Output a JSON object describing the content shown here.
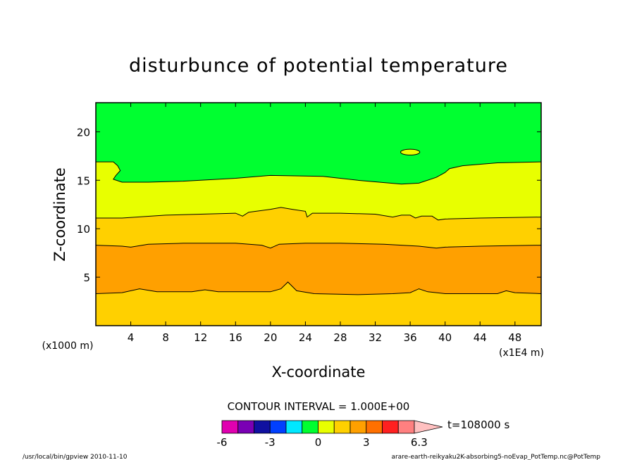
{
  "chart_data": {
    "type": "contour",
    "title": "disturbunce of potential temperature",
    "xlabel": "X-coordinate",
    "ylabel": "Z-coordinate",
    "x_unit": "(x1E4 m)",
    "y_unit": "(x1000 m)",
    "xlim": [
      0,
      51
    ],
    "ylim": [
      0,
      23
    ],
    "x_ticks": [
      4,
      8,
      12,
      16,
      20,
      24,
      28,
      32,
      36,
      40,
      44,
      48
    ],
    "y_ticks": [
      5,
      10,
      15,
      20
    ],
    "contour_interval_label": "CONTOUR INTERVAL = 1.000E+00",
    "time_label": "t=108000 s",
    "colorbar": {
      "levels": [
        -6,
        -5,
        -4,
        -3,
        -2,
        -1,
        0,
        1,
        2,
        3,
        4,
        5,
        6
      ],
      "tick_labels": [
        "-6",
        "-3",
        "0",
        "3",
        "6.3"
      ],
      "tick_values": [
        -6,
        -3,
        0,
        3,
        6.3
      ],
      "colors": [
        "#e000b0",
        "#7a00b4",
        "#1010a0",
        "#0040ff",
        "#00e8ff",
        "#00ff30",
        "#e8ff00",
        "#ffd000",
        "#ffa000",
        "#ff7000",
        "#ff2020",
        "#ff8080",
        "#ffc0c0"
      ]
    },
    "bands": [
      {
        "range": "0 to 1",
        "color": "#ffd000",
        "lower": [
          [
            0,
            0
          ],
          [
            51,
            0
          ]
        ],
        "upper": [
          [
            0,
            3.3
          ],
          [
            3,
            3.4
          ],
          [
            5,
            3.8
          ],
          [
            7,
            3.5
          ],
          [
            11,
            3.5
          ],
          [
            12.5,
            3.7
          ],
          [
            14,
            3.5
          ],
          [
            20,
            3.5
          ],
          [
            21.2,
            3.8
          ],
          [
            22,
            4.5
          ],
          [
            23,
            3.6
          ],
          [
            25,
            3.3
          ],
          [
            30,
            3.2
          ],
          [
            34,
            3.3
          ],
          [
            36,
            3.4
          ],
          [
            37,
            3.8
          ],
          [
            38,
            3.5
          ],
          [
            40,
            3.3
          ],
          [
            46,
            3.3
          ],
          [
            47,
            3.6
          ],
          [
            48,
            3.4
          ],
          [
            51,
            3.3
          ]
        ]
      },
      {
        "range": "1 to 2",
        "color": "#ffa000",
        "upper": [
          [
            0,
            8.3
          ],
          [
            3,
            8.2
          ],
          [
            4,
            8.1
          ],
          [
            6,
            8.4
          ],
          [
            10,
            8.5
          ],
          [
            16,
            8.5
          ],
          [
            19,
            8.3
          ],
          [
            20,
            8.0
          ],
          [
            21,
            8.4
          ],
          [
            24,
            8.5
          ],
          [
            28,
            8.5
          ],
          [
            33,
            8.4
          ],
          [
            37,
            8.2
          ],
          [
            39,
            8.0
          ],
          [
            40,
            8.1
          ],
          [
            44,
            8.2
          ],
          [
            51,
            8.3
          ]
        ]
      },
      {
        "range": "0 to 1",
        "color": "#ffd000",
        "upper": [
          [
            0,
            11.1
          ],
          [
            3,
            11.1
          ],
          [
            8,
            11.4
          ],
          [
            12,
            11.5
          ],
          [
            16,
            11.6
          ],
          [
            16.8,
            11.3
          ],
          [
            17.5,
            11.7
          ],
          [
            20,
            12.0
          ],
          [
            21.2,
            12.2
          ],
          [
            22.5,
            12.0
          ],
          [
            24,
            11.8
          ],
          [
            24.2,
            11.2
          ],
          [
            24.8,
            11.6
          ],
          [
            28,
            11.6
          ],
          [
            32,
            11.5
          ],
          [
            34,
            11.2
          ],
          [
            35,
            11.4
          ],
          [
            36,
            11.4
          ],
          [
            36.6,
            11.1
          ],
          [
            37.3,
            11.3
          ],
          [
            38.5,
            11.3
          ],
          [
            39.2,
            10.9
          ],
          [
            40,
            11.0
          ],
          [
            44,
            11.1
          ],
          [
            51,
            11.2
          ]
        ]
      },
      {
        "range": "-1 to 0",
        "color": "#e8ff00",
        "upper": [
          [
            0,
            16.9
          ],
          [
            2,
            16.9
          ],
          [
            2.5,
            16.5
          ],
          [
            2.8,
            16.0
          ],
          [
            2.3,
            15.5
          ],
          [
            2,
            15.1
          ],
          [
            3,
            14.8
          ],
          [
            6,
            14.8
          ],
          [
            10,
            14.9
          ],
          [
            16,
            15.2
          ],
          [
            20,
            15.5
          ],
          [
            26,
            15.4
          ],
          [
            30,
            15.0
          ],
          [
            35,
            14.6
          ],
          [
            37,
            14.7
          ],
          [
            39,
            15.3
          ],
          [
            40,
            15.8
          ],
          [
            40.5,
            16.2
          ],
          [
            42,
            16.5
          ],
          [
            46,
            16.8
          ],
          [
            51,
            16.9
          ]
        ]
      },
      {
        "range": "-2 to -1",
        "color": "#00ff30",
        "upper": [
          [
            0,
            23
          ],
          [
            51,
            23
          ]
        ]
      }
    ],
    "closed_contour": {
      "center": [
        36,
        17.9
      ],
      "rx": 1.1,
      "ry": 0.3,
      "color": "#e8ff00"
    }
  },
  "footer": {
    "left": "/usr/local/bin/gpview  2010-11-10",
    "right": "arare-earth-reikyaku2K-absorbing5-noEvap_PotTemp.nc@PotTemp"
  }
}
